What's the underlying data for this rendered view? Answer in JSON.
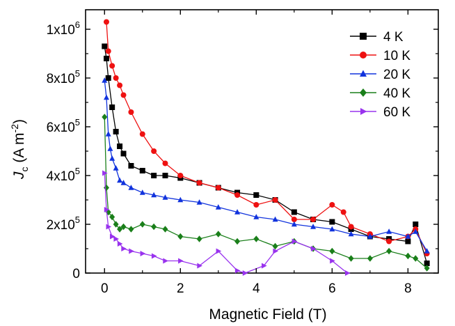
{
  "chart_data": {
    "type": "line",
    "xlabel": "Magnetic Field (T)",
    "ylabel": {
      "main": "J",
      "sub": "c",
      "unit": " (A m",
      "unit_sup": "-2",
      "close": ")"
    },
    "xlim": [
      -0.5,
      8.8
    ],
    "ylim": [
      0,
      1080000
    ],
    "x_ticks": [
      {
        "value": 0,
        "label": "0"
      },
      {
        "value": 2,
        "label": "2"
      },
      {
        "value": 4,
        "label": "4"
      },
      {
        "value": 6,
        "label": "6"
      },
      {
        "value": 8,
        "label": "8"
      }
    ],
    "y_ticks": [
      {
        "value": 0,
        "base": "0",
        "exp": ""
      },
      {
        "value": 200000,
        "base": "2x10",
        "exp": "5"
      },
      {
        "value": 400000,
        "base": "4x10",
        "exp": "5"
      },
      {
        "value": 600000,
        "base": "6x10",
        "exp": "5"
      },
      {
        "value": 800000,
        "base": "8x10",
        "exp": "5"
      },
      {
        "value": 1000000,
        "base": "1x10",
        "exp": "6"
      }
    ],
    "legend_position": "top-right",
    "series": [
      {
        "name": "4 K",
        "color": "#000000",
        "marker": "square",
        "x": [
          0.0,
          0.05,
          0.1,
          0.2,
          0.3,
          0.4,
          0.5,
          0.7,
          1.0,
          1.3,
          1.6,
          2.0,
          2.5,
          3.0,
          3.5,
          4.0,
          4.5,
          5.0,
          5.5,
          6.0,
          6.5,
          7.0,
          7.5,
          8.0,
          8.2,
          8.5
        ],
        "y": [
          930000,
          880000,
          800000,
          680000,
          580000,
          520000,
          490000,
          440000,
          420000,
          400000,
          400000,
          390000,
          370000,
          350000,
          330000,
          320000,
          300000,
          250000,
          220000,
          210000,
          180000,
          150000,
          140000,
          130000,
          200000,
          40000
        ]
      },
      {
        "name": "10 K",
        "color": "#ee1111",
        "marker": "circle",
        "x": [
          0.05,
          0.1,
          0.2,
          0.3,
          0.4,
          0.5,
          0.7,
          1.0,
          1.3,
          1.6,
          2.0,
          2.5,
          3.0,
          3.5,
          4.0,
          4.5,
          5.0,
          5.5,
          6.0,
          6.3,
          6.5,
          7.0,
          7.5,
          8.0,
          8.2,
          8.5
        ],
        "y": [
          1030000,
          910000,
          850000,
          800000,
          770000,
          730000,
          660000,
          570000,
          500000,
          450000,
          400000,
          370000,
          350000,
          320000,
          280000,
          300000,
          220000,
          220000,
          280000,
          250000,
          190000,
          160000,
          130000,
          150000,
          180000,
          80000
        ]
      },
      {
        "name": "20 K",
        "color": "#1133dd",
        "marker": "triangle-up",
        "x": [
          0.0,
          0.05,
          0.1,
          0.15,
          0.2,
          0.3,
          0.4,
          0.5,
          0.7,
          1.0,
          1.3,
          1.6,
          2.0,
          2.5,
          3.0,
          3.5,
          4.0,
          4.5,
          5.0,
          5.5,
          6.0,
          6.5,
          7.0,
          7.5,
          8.0,
          8.2,
          8.5
        ],
        "y": [
          790000,
          720000,
          570000,
          510000,
          470000,
          430000,
          380000,
          370000,
          350000,
          330000,
          320000,
          310000,
          300000,
          290000,
          270000,
          250000,
          230000,
          220000,
          200000,
          190000,
          180000,
          160000,
          150000,
          170000,
          150000,
          170000,
          90000
        ]
      },
      {
        "name": "40 K",
        "color": "#1a7f1a",
        "marker": "diamond",
        "x": [
          0.0,
          0.05,
          0.1,
          0.2,
          0.3,
          0.4,
          0.5,
          0.7,
          1.0,
          1.3,
          1.6,
          2.0,
          2.5,
          3.0,
          3.5,
          4.0,
          4.5,
          5.0,
          5.5,
          6.0,
          6.5,
          7.0,
          7.5,
          8.0,
          8.2,
          8.5
        ],
        "y": [
          640000,
          350000,
          250000,
          230000,
          200000,
          180000,
          190000,
          180000,
          200000,
          190000,
          180000,
          150000,
          140000,
          160000,
          130000,
          140000,
          110000,
          130000,
          100000,
          90000,
          60000,
          60000,
          90000,
          70000,
          60000,
          20000
        ]
      },
      {
        "name": "60 K",
        "color": "#9933ee",
        "marker": "triangle-right",
        "x": [
          0.0,
          0.05,
          0.1,
          0.2,
          0.3,
          0.4,
          0.5,
          0.7,
          1.0,
          1.3,
          1.6,
          2.0,
          2.5,
          3.0,
          3.5,
          3.7,
          4.2,
          4.5,
          5.0,
          5.5,
          6.0,
          6.4
        ],
        "y": [
          410000,
          260000,
          190000,
          150000,
          140000,
          120000,
          100000,
          90000,
          80000,
          70000,
          50000,
          50000,
          30000,
          90000,
          10000,
          0,
          30000,
          90000,
          130000,
          100000,
          50000,
          0
        ]
      }
    ]
  }
}
